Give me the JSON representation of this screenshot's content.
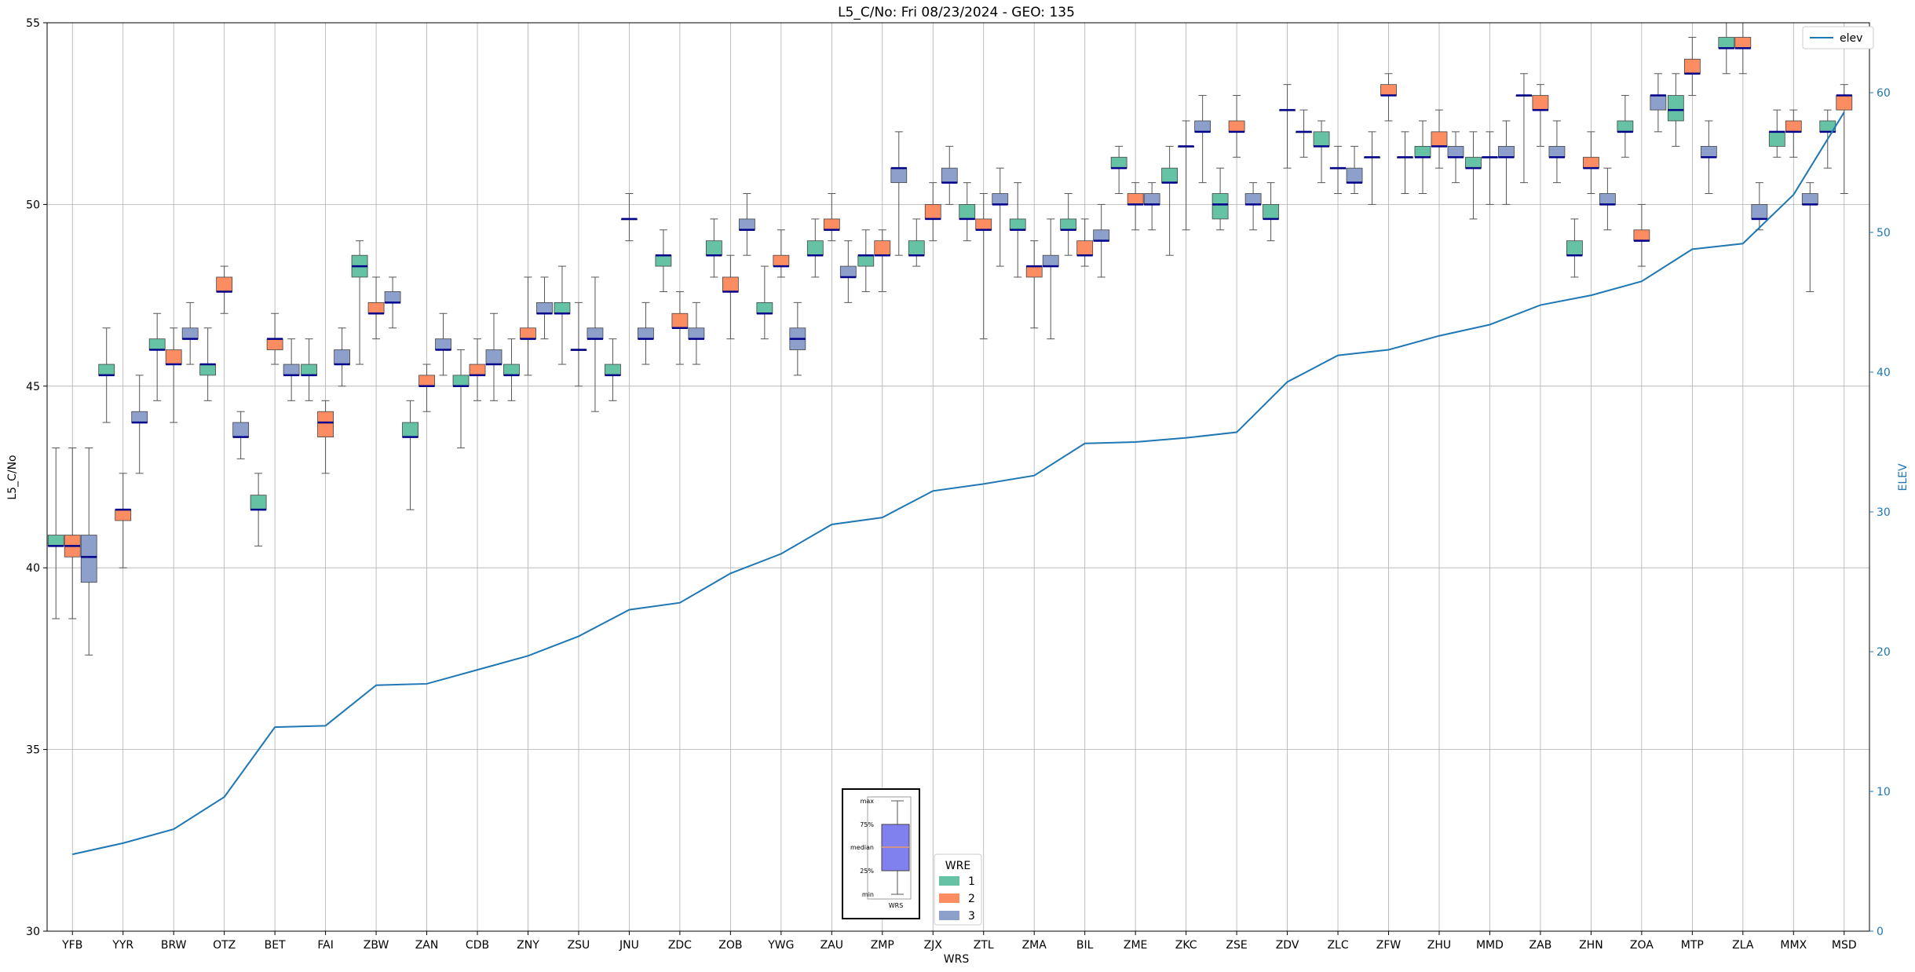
{
  "chart_data": {
    "type": "box",
    "title": "L5_C/No: Fri 08/23/2024 - GEO: 135",
    "xlabel": "WRS",
    "ylabel": "L5_C/No",
    "ylabel_right": "ELEV",
    "ylim": [
      30,
      55
    ],
    "ylim_right": [
      0,
      65
    ],
    "yticks": [
      30,
      35,
      40,
      45,
      50,
      55
    ],
    "yticks_right": [
      0,
      10,
      20,
      30,
      40,
      50,
      60
    ],
    "grid": true,
    "categories": [
      "YFB",
      "YYR",
      "BRW",
      "OTZ",
      "BET",
      "FAI",
      "ZBW",
      "ZAN",
      "CDB",
      "ZNY",
      "ZSU",
      "JNU",
      "ZDC",
      "ZOB",
      "YWG",
      "ZAU",
      "ZMP",
      "ZJX",
      "ZTL",
      "ZMA",
      "BIL",
      "ZME",
      "ZKC",
      "ZSE",
      "ZDV",
      "ZLC",
      "ZFW",
      "ZHU",
      "MMD",
      "ZAB",
      "ZHN",
      "ZOA",
      "MTP",
      "ZLA",
      "MMX",
      "MSD"
    ],
    "series_colors": {
      "1": "#66c2a5",
      "2": "#fc8d62",
      "3": "#8da0cb"
    },
    "median_color": "#00008b",
    "boxes": [
      [
        [
          38.6,
          40.6,
          40.6,
          40.9,
          43.3
        ],
        [
          38.6,
          40.3,
          40.6,
          40.9,
          43.3
        ],
        [
          37.6,
          39.6,
          40.3,
          40.9,
          43.3
        ]
      ],
      [
        [
          44.0,
          45.3,
          45.3,
          45.6,
          46.6
        ],
        [
          40.0,
          41.3,
          41.6,
          41.6,
          42.6
        ],
        [
          42.6,
          44.0,
          44.0,
          44.3,
          45.3
        ]
      ],
      [
        [
          44.6,
          46.0,
          46.0,
          46.3,
          47.0
        ],
        [
          44.0,
          45.6,
          45.6,
          46.0,
          46.6
        ],
        [
          45.6,
          46.3,
          46.3,
          46.6,
          47.3
        ]
      ],
      [
        [
          44.6,
          45.3,
          45.6,
          45.6,
          46.6
        ],
        [
          47.0,
          47.6,
          47.6,
          48.0,
          48.3
        ],
        [
          43.0,
          43.6,
          43.6,
          44.0,
          44.3
        ]
      ],
      [
        [
          40.6,
          41.6,
          41.6,
          42.0,
          42.6
        ],
        [
          45.6,
          46.0,
          46.3,
          46.3,
          47.0
        ],
        [
          44.6,
          45.3,
          45.3,
          45.6,
          46.3
        ]
      ],
      [
        [
          44.6,
          45.3,
          45.3,
          45.6,
          46.3
        ],
        [
          42.6,
          43.6,
          44.0,
          44.3,
          44.6
        ],
        [
          45.0,
          45.6,
          45.6,
          46.0,
          46.6
        ]
      ],
      [
        [
          45.6,
          48.0,
          48.3,
          48.6,
          49.0
        ],
        [
          46.3,
          47.0,
          47.0,
          47.3,
          48.0
        ],
        [
          46.6,
          47.3,
          47.3,
          47.6,
          48.0
        ]
      ],
      [
        [
          41.6,
          43.6,
          43.6,
          44.0,
          44.6
        ],
        [
          44.3,
          45.0,
          45.0,
          45.3,
          45.6
        ],
        [
          45.3,
          46.0,
          46.0,
          46.3,
          47.0
        ]
      ],
      [
        [
          43.3,
          45.0,
          45.0,
          45.3,
          46.0
        ],
        [
          44.6,
          45.3,
          45.3,
          45.6,
          46.3
        ],
        [
          44.6,
          45.6,
          45.6,
          46.0,
          47.0
        ]
      ],
      [
        [
          44.6,
          45.3,
          45.3,
          45.6,
          46.3
        ],
        [
          45.3,
          46.3,
          46.3,
          46.6,
          48.0
        ],
        [
          46.3,
          47.0,
          47.0,
          47.3,
          48.0
        ]
      ],
      [
        [
          45.6,
          47.0,
          47.0,
          47.3,
          48.3
        ],
        [
          45.0,
          46.0,
          46.0,
          46.0,
          47.3
        ],
        [
          44.3,
          46.3,
          46.3,
          46.6,
          48.0
        ]
      ],
      [
        [
          44.6,
          45.3,
          45.3,
          45.6,
          46.3
        ],
        [
          49.0,
          49.6,
          49.6,
          49.6,
          50.3
        ],
        [
          45.6,
          46.3,
          46.3,
          46.6,
          47.3
        ]
      ],
      [
        [
          47.6,
          48.3,
          48.6,
          48.6,
          49.3
        ],
        [
          45.6,
          46.6,
          46.6,
          47.0,
          47.6
        ],
        [
          45.6,
          46.3,
          46.3,
          46.6,
          47.3
        ]
      ],
      [
        [
          48.0,
          48.6,
          48.6,
          49.0,
          49.6
        ],
        [
          46.3,
          47.6,
          47.6,
          48.0,
          48.6
        ],
        [
          48.6,
          49.3,
          49.3,
          49.6,
          50.3
        ]
      ],
      [
        [
          46.3,
          47.0,
          47.0,
          47.3,
          48.3
        ],
        [
          48.0,
          48.3,
          48.3,
          48.6,
          49.3
        ],
        [
          45.3,
          46.0,
          46.3,
          46.6,
          47.3
        ]
      ],
      [
        [
          48.0,
          48.6,
          48.6,
          49.0,
          49.6
        ],
        [
          49.0,
          49.3,
          49.3,
          49.6,
          50.3
        ],
        [
          47.3,
          48.0,
          48.0,
          48.3,
          49.0
        ]
      ],
      [
        [
          47.6,
          48.3,
          48.6,
          48.6,
          49.3
        ],
        [
          47.6,
          48.6,
          48.6,
          49.0,
          49.3
        ],
        [
          48.6,
          50.6,
          51.0,
          51.0,
          52.0
        ]
      ],
      [
        [
          48.3,
          48.6,
          48.6,
          49.0,
          49.6
        ],
        [
          49.0,
          49.6,
          49.6,
          50.0,
          50.6
        ],
        [
          50.0,
          50.6,
          50.6,
          51.0,
          51.6
        ]
      ],
      [
        [
          49.0,
          49.6,
          49.6,
          50.0,
          50.6
        ],
        [
          46.3,
          49.3,
          49.3,
          49.6,
          50.3
        ],
        [
          48.3,
          50.0,
          50.0,
          50.3,
          51.0
        ]
      ],
      [
        [
          48.0,
          49.3,
          49.3,
          49.6,
          50.6
        ],
        [
          46.6,
          48.0,
          48.3,
          48.3,
          49.0
        ],
        [
          46.3,
          48.3,
          48.3,
          48.6,
          49.6
        ]
      ],
      [
        [
          48.6,
          49.3,
          49.3,
          49.6,
          50.3
        ],
        [
          48.3,
          48.6,
          48.6,
          49.0,
          49.6
        ],
        [
          48.0,
          49.0,
          49.0,
          49.3,
          50.0
        ]
      ],
      [
        [
          50.3,
          51.0,
          51.0,
          51.3,
          51.6
        ],
        [
          49.3,
          50.0,
          50.0,
          50.3,
          50.6
        ],
        [
          49.3,
          50.0,
          50.0,
          50.3,
          50.6
        ]
      ],
      [
        [
          48.6,
          50.6,
          50.6,
          51.0,
          51.6
        ],
        [
          49.3,
          51.6,
          51.6,
          51.6,
          52.3
        ],
        [
          50.6,
          52.0,
          52.0,
          52.3,
          53.0
        ]
      ],
      [
        [
          49.3,
          49.6,
          50.0,
          50.3,
          51.0
        ],
        [
          51.3,
          52.0,
          52.0,
          52.3,
          53.0
        ],
        [
          49.3,
          50.0,
          50.0,
          50.3,
          50.6
        ]
      ],
      [
        [
          49.0,
          49.6,
          49.6,
          50.0,
          50.6
        ],
        [
          51.0,
          52.6,
          52.6,
          52.6,
          53.3
        ],
        [
          51.3,
          52.0,
          52.0,
          52.0,
          52.6
        ]
      ],
      [
        [
          50.6,
          51.6,
          51.6,
          52.0,
          52.3
        ],
        [
          50.3,
          51.0,
          51.0,
          51.0,
          51.6
        ],
        [
          50.3,
          50.6,
          50.6,
          51.0,
          51.6
        ]
      ],
      [
        [
          50.0,
          51.3,
          51.3,
          51.3,
          52.0
        ],
        [
          52.3,
          53.0,
          53.0,
          53.3,
          53.6
        ],
        [
          50.3,
          51.3,
          51.3,
          51.3,
          52.0
        ]
      ],
      [
        [
          50.3,
          51.3,
          51.3,
          51.6,
          52.3
        ],
        [
          51.0,
          51.6,
          51.6,
          52.0,
          52.6
        ],
        [
          50.6,
          51.3,
          51.3,
          51.6,
          52.0
        ]
      ],
      [
        [
          49.6,
          51.0,
          51.0,
          51.3,
          52.0
        ],
        [
          50.0,
          51.3,
          51.3,
          51.3,
          52.0
        ],
        [
          50.0,
          51.3,
          51.3,
          51.6,
          52.3
        ]
      ],
      [
        [
          50.6,
          53.0,
          53.0,
          53.0,
          53.6
        ],
        [
          51.6,
          52.6,
          52.6,
          53.0,
          53.3
        ],
        [
          50.6,
          51.3,
          51.3,
          51.6,
          52.3
        ]
      ],
      [
        [
          48.0,
          48.6,
          48.6,
          49.0,
          49.6
        ],
        [
          50.3,
          51.0,
          51.0,
          51.3,
          52.0
        ],
        [
          49.3,
          50.0,
          50.0,
          50.3,
          51.0
        ]
      ],
      [
        [
          51.3,
          52.0,
          52.0,
          52.3,
          53.0
        ],
        [
          48.3,
          49.0,
          49.0,
          49.3,
          50.0
        ],
        [
          52.0,
          52.6,
          53.0,
          53.0,
          53.6
        ]
      ],
      [
        [
          51.6,
          52.3,
          52.6,
          53.0,
          53.6
        ],
        [
          53.0,
          53.6,
          53.6,
          54.0,
          54.6
        ],
        [
          50.3,
          51.3,
          51.3,
          51.6,
          52.3
        ]
      ],
      [
        [
          53.6,
          54.3,
          54.3,
          54.6,
          55.0
        ],
        [
          53.6,
          54.3,
          54.3,
          54.6,
          55.0
        ],
        [
          49.3,
          49.6,
          49.6,
          50.0,
          50.6
        ]
      ],
      [
        [
          51.3,
          51.6,
          52.0,
          52.0,
          52.6
        ],
        [
          51.3,
          52.0,
          52.0,
          52.3,
          52.6
        ],
        [
          47.6,
          50.0,
          50.0,
          50.3,
          50.6
        ]
      ],
      [
        [
          51.0,
          52.0,
          52.0,
          52.3,
          52.6
        ],
        [
          50.3,
          52.6,
          53.0,
          53.0,
          53.3
        ],
        null
      ]
    ],
    "elev": [
      5.5,
      6.3,
      7.3,
      9.6,
      14.6,
      14.7,
      17.6,
      17.7,
      18.7,
      19.7,
      21.1,
      23.0,
      23.5,
      25.6,
      27.0,
      29.1,
      29.6,
      31.5,
      32.0,
      32.6,
      34.9,
      35.0,
      35.3,
      35.7,
      39.3,
      41.2,
      41.6,
      42.6,
      43.4,
      44.8,
      45.5,
      46.5,
      48.8,
      49.2,
      52.7,
      58.6
    ],
    "elev_series_name": "elev",
    "elev_color": "#1f77b4",
    "legend_wre_title": "WRE",
    "legend_wre_entries": [
      "1",
      "2",
      "3"
    ],
    "legend_elev_placement": "top-right",
    "legend_wre_placement": "lower-center",
    "key_labels": [
      "max",
      "75%",
      "median",
      "25%",
      "min"
    ],
    "key_xlabel": "WRS"
  }
}
